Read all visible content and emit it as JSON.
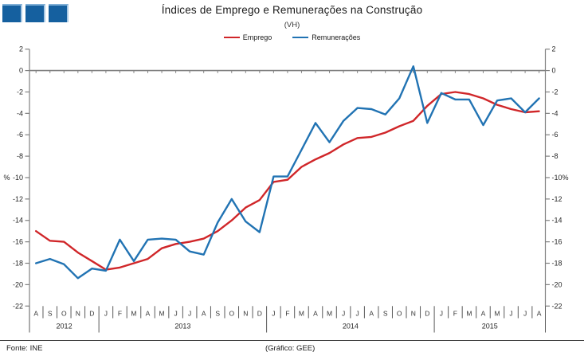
{
  "logo": {
    "name": "three-blue-squares",
    "color": "#15609f",
    "square_count": 3
  },
  "header": {
    "title": "Índices de Emprego e Remunerações na Construção",
    "subtitle": "(VH)"
  },
  "legend": [
    {
      "label": "Emprego",
      "color": "#d02629"
    },
    {
      "label": "Remunerações",
      "color": "#2173b3"
    }
  ],
  "footer": {
    "source": "Fonte: INE",
    "credit": "(Gráfico: GEE)"
  },
  "chart_data": {
    "type": "line",
    "title": "Índices de Emprego e Remunerações na Construção",
    "subtitle": "(VH)",
    "unit": "%",
    "ylim": [
      -22,
      2
    ],
    "y_ticks": [
      2,
      0,
      -2,
      -4,
      -6,
      -8,
      -10,
      -12,
      -14,
      -16,
      -18,
      -20,
      -22
    ],
    "percent_tick": -10,
    "grid": "zero-line-only",
    "legend_position": "top-center",
    "x_months": [
      "A",
      "S",
      "O",
      "N",
      "D",
      "J",
      "F",
      "M",
      "A",
      "M",
      "J",
      "J",
      "A",
      "S",
      "O",
      "N",
      "D",
      "J",
      "F",
      "M",
      "A",
      "M",
      "J",
      "J",
      "A",
      "S",
      "O",
      "N",
      "D",
      "J",
      "F",
      "M",
      "A",
      "M",
      "J",
      "J",
      "A"
    ],
    "year_groups": [
      {
        "label": "2012",
        "count": 5
      },
      {
        "label": "2013",
        "count": 12
      },
      {
        "label": "2014",
        "count": 12
      },
      {
        "label": "2015",
        "count": 8
      }
    ],
    "series": [
      {
        "name": "Emprego",
        "color": "#d02629",
        "values": [
          -15.0,
          -15.9,
          -16.0,
          -17.0,
          -17.8,
          -18.6,
          -18.4,
          -18.0,
          -17.6,
          -16.6,
          -16.2,
          -16.0,
          -15.7,
          -15.0,
          -14.0,
          -12.8,
          -12.1,
          -10.4,
          -10.2,
          -9.0,
          -8.3,
          -7.7,
          -6.9,
          -6.3,
          -6.2,
          -5.8,
          -5.2,
          -4.7,
          -3.3,
          -2.2,
          -2.0,
          -2.2,
          -2.6,
          -3.2,
          -3.6,
          -3.9,
          -3.8
        ]
      },
      {
        "name": "Remunerações",
        "color": "#2173b3",
        "values": [
          -18.0,
          -17.6,
          -18.1,
          -19.4,
          -18.5,
          -18.7,
          -15.8,
          -17.8,
          -15.8,
          -15.7,
          -15.8,
          -16.9,
          -17.2,
          -14.2,
          -12.0,
          -14.1,
          -15.1,
          -9.9,
          -9.9,
          -7.4,
          -4.9,
          -6.7,
          -4.7,
          -3.5,
          -3.6,
          -4.1,
          -2.6,
          0.4,
          -4.9,
          -2.1,
          -2.7,
          -2.7,
          -5.1,
          -2.8,
          -2.6,
          -3.9,
          -2.6
        ]
      }
    ]
  }
}
